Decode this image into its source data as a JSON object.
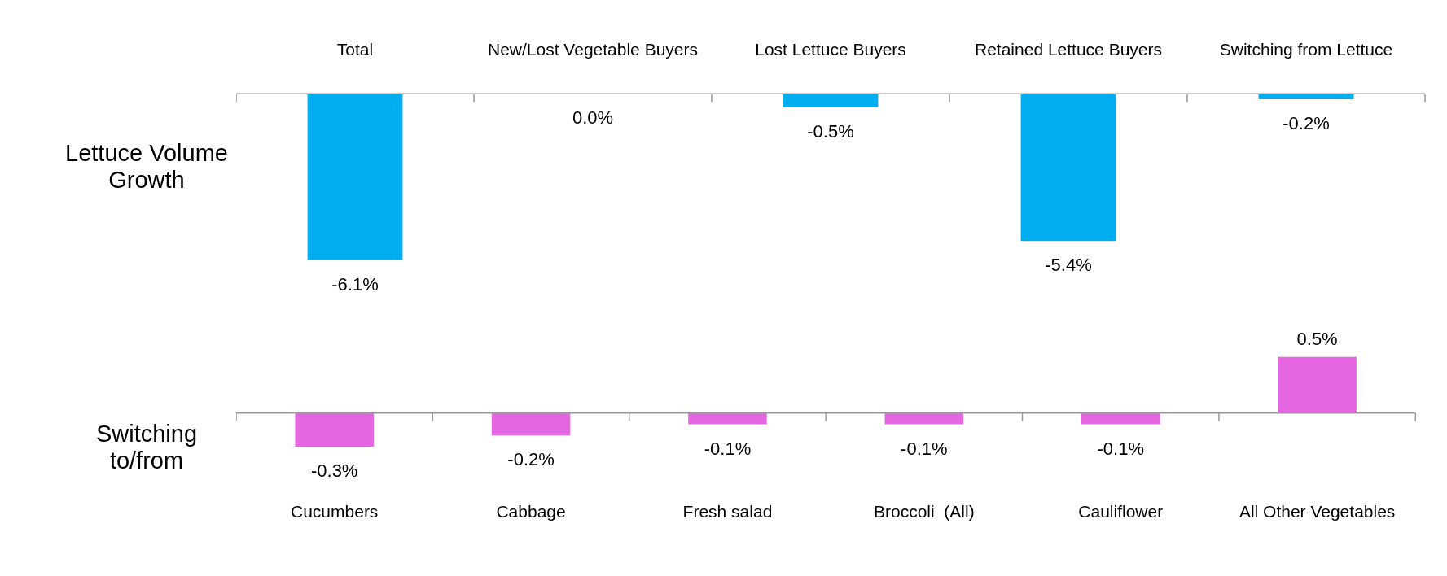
{
  "chart_data": [
    {
      "type": "bar",
      "ylabel": "Lettuce Volume Growth",
      "categories": [
        "Total",
        "New/Lost Vegetable Buyers",
        "Lost Lettuce Buyers",
        "Retained Lettuce Buyers",
        "Switching from Lettuce"
      ],
      "values": [
        -6.1,
        0.0,
        -0.5,
        -5.4,
        -0.2
      ],
      "value_labels": [
        "-6.1%",
        "0.0%",
        "-0.5%",
        "-5.4%",
        "-0.2%"
      ],
      "color": "#00aeef",
      "grid": false,
      "legend": false,
      "tick_labels": "x"
    },
    {
      "type": "bar",
      "ylabel": "Switching to/from",
      "categories": [
        "Cucumbers",
        "Cabbage",
        "Fresh salad",
        "Broccoli  (All)",
        "Cauliflower",
        "All Other Vegetables"
      ],
      "values": [
        -0.3,
        -0.2,
        -0.1,
        -0.1,
        -0.1,
        0.5
      ],
      "value_labels": [
        "-0.3%",
        "-0.2%",
        "-0.1%",
        "-0.1%",
        "-0.1%",
        "0.5%"
      ],
      "color": "#e466e0",
      "grid": false,
      "legend": false,
      "tick_labels": "x"
    }
  ]
}
